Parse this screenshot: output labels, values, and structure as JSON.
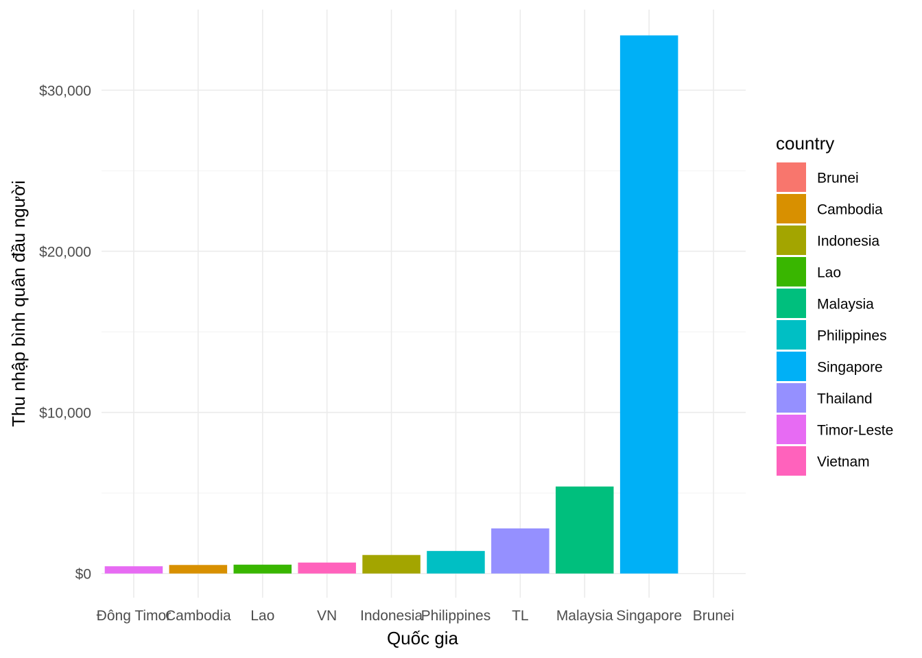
{
  "chart_data": {
    "type": "bar",
    "title": "",
    "xlabel": "Quốc gia",
    "ylabel": "Thu nhập bình quân đầu người",
    "categories": [
      "Đông Timor",
      "Cambodia",
      "Lao",
      "VN",
      "Indonesia",
      "Philippines",
      "TL",
      "Malaysia",
      "Singapore",
      "Brunei"
    ],
    "fill_keys": [
      "Timor-Leste",
      "Cambodia",
      "Lao",
      "Vietnam",
      "Indonesia",
      "Philippines",
      "Thailand",
      "Malaysia",
      "Singapore",
      "Brunei"
    ],
    "values": [
      450,
      530,
      550,
      680,
      1150,
      1400,
      2800,
      5400,
      33400,
      0
    ],
    "ylim": [
      -1500,
      35000
    ],
    "y_ticks": [
      0,
      10000,
      20000,
      30000
    ],
    "y_tick_labels": [
      "$0",
      "$10,000",
      "$20,000",
      "$30,000"
    ],
    "grid": true,
    "legend": {
      "title": "country",
      "position": "right",
      "entries": [
        {
          "label": "Brunei",
          "color": "#F8766D"
        },
        {
          "label": "Cambodia",
          "color": "#D89000"
        },
        {
          "label": "Indonesia",
          "color": "#A3A500"
        },
        {
          "label": "Lao",
          "color": "#39B600"
        },
        {
          "label": "Malaysia",
          "color": "#00BF7D"
        },
        {
          "label": "Philippines",
          "color": "#00BFC4"
        },
        {
          "label": "Singapore",
          "color": "#00B0F6"
        },
        {
          "label": "Thailand",
          "color": "#9590FF"
        },
        {
          "label": "Timor-Leste",
          "color": "#E76BF3"
        },
        {
          "label": "Vietnam",
          "color": "#FF62BC"
        }
      ]
    }
  }
}
